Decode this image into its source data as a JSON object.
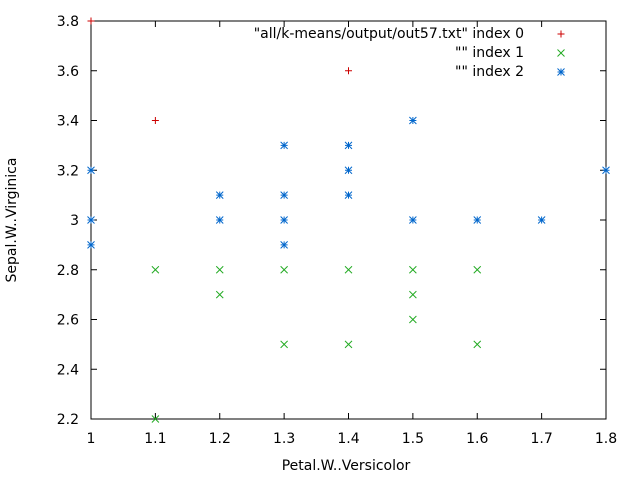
{
  "chart_data": {
    "type": "scatter",
    "xlabel": "Petal.W..Versicolor",
    "ylabel": "Sepal.W..Virginica",
    "xlim": [
      1,
      1.8
    ],
    "ylim": [
      2.2,
      3.8
    ],
    "x_ticks": [
      "1",
      "1.1",
      "1.2",
      "1.3",
      "1.4",
      "1.5",
      "1.6",
      "1.7",
      "1.8"
    ],
    "y_ticks": [
      "2.2",
      "2.4",
      "2.6",
      "2.8",
      "3",
      "3.2",
      "3.4",
      "3.6",
      "3.8"
    ],
    "grid": false,
    "legend_position": "top-right",
    "series": [
      {
        "name": "\"all/k-means/output/out57.txt\" index 0",
        "marker": "plus",
        "color": "#cc0000",
        "points": [
          [
            1,
            3.8
          ],
          [
            1.1,
            3.4
          ],
          [
            1.4,
            3.6
          ]
        ]
      },
      {
        "name": "\"\" index 1",
        "marker": "cross",
        "color": "#22aa22",
        "points": [
          [
            1.1,
            2.8
          ],
          [
            1.1,
            2.2
          ],
          [
            1.2,
            2.8
          ],
          [
            1.2,
            2.7
          ],
          [
            1.3,
            2.8
          ],
          [
            1.3,
            2.5
          ],
          [
            1.4,
            2.8
          ],
          [
            1.4,
            2.5
          ],
          [
            1.5,
            2.8
          ],
          [
            1.5,
            2.7
          ],
          [
            1.5,
            2.6
          ],
          [
            1.6,
            2.8
          ],
          [
            1.6,
            2.5
          ]
        ]
      },
      {
        "name": "\"\" index 2",
        "marker": "star",
        "color": "#0066cc",
        "points": [
          [
            1,
            3.2
          ],
          [
            1,
            3.0
          ],
          [
            1,
            2.9
          ],
          [
            1.2,
            3.1
          ],
          [
            1.2,
            3.0
          ],
          [
            1.3,
            3.3
          ],
          [
            1.3,
            3.1
          ],
          [
            1.3,
            3.0
          ],
          [
            1.3,
            2.9
          ],
          [
            1.4,
            3.3
          ],
          [
            1.4,
            3.2
          ],
          [
            1.4,
            3.1
          ],
          [
            1.5,
            3.4
          ],
          [
            1.5,
            3.0
          ],
          [
            1.6,
            3.0
          ],
          [
            1.7,
            3.0
          ],
          [
            1.8,
            3.2
          ]
        ]
      }
    ]
  }
}
